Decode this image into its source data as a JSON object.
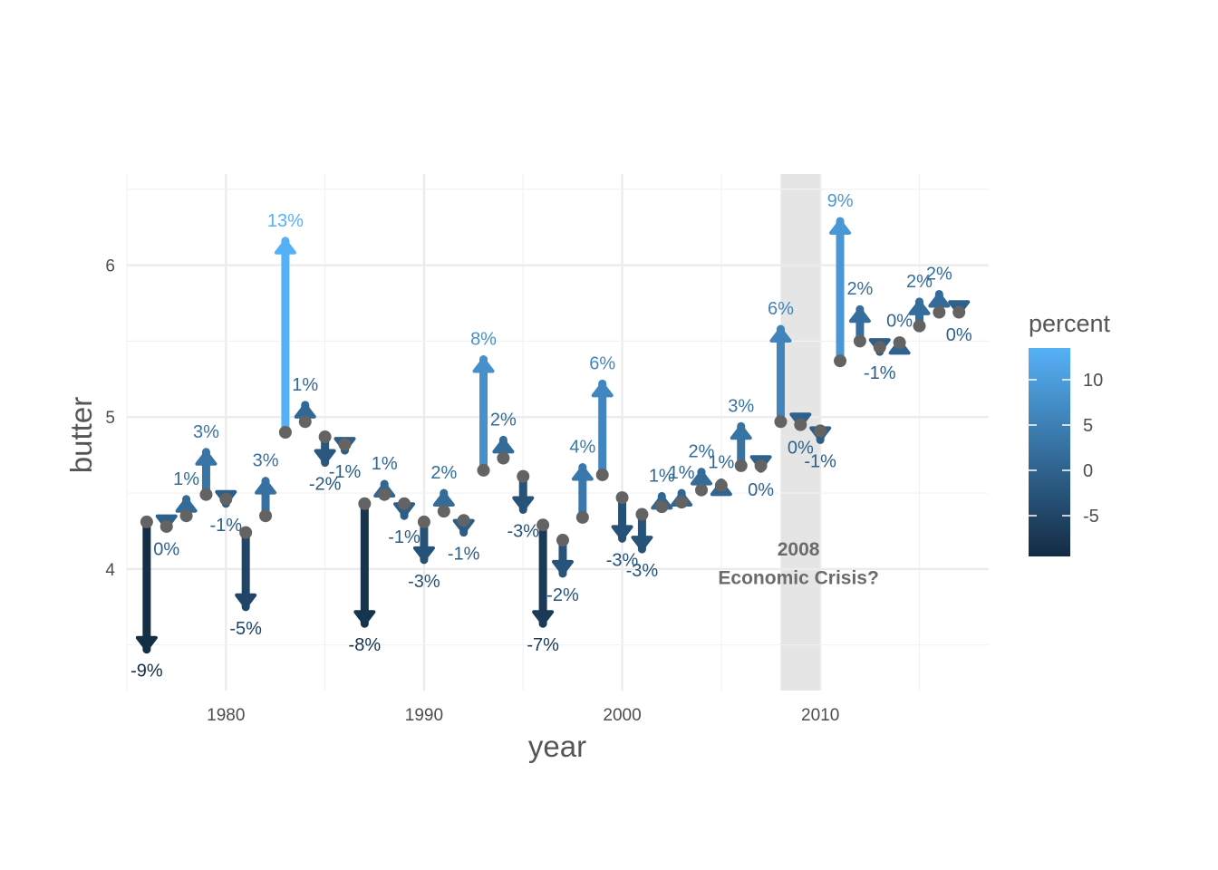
{
  "chart_data": {
    "type": "arrow",
    "xlabel": "year",
    "ylabel": "butter",
    "xlim": [
      1975,
      2018.5
    ],
    "ylim": [
      3.2,
      6.6
    ],
    "x_ticks": [
      1980,
      1990,
      2000,
      2010
    ],
    "x_tick_labels": [
      "1980",
      "1990",
      "2000",
      "2010"
    ],
    "y_ticks": [
      4,
      5,
      6
    ],
    "y_tick_labels": [
      "4",
      "5",
      "6"
    ],
    "grid": true,
    "legend": {
      "title": "percent",
      "position": "right",
      "ticks": [
        10,
        5,
        0,
        -5
      ],
      "tick_labels": [
        "10",
        "5",
        "0",
        "-5"
      ],
      "range": [
        -9.5,
        13.5
      ],
      "colors": [
        "#132B43",
        "#56B1F7"
      ]
    },
    "highlight": {
      "x_from": 2008,
      "x_to": 2010,
      "color": "#e5e5e5",
      "label_lines": [
        "2008",
        "Economic Crisis?"
      ],
      "label_x": 2008.9,
      "label_y": [
        4.09,
        3.9
      ]
    },
    "points": [
      {
        "year": 1976,
        "from": 4.31,
        "to": 3.47,
        "pct": -9.0,
        "label": "-9%"
      },
      {
        "year": 1977,
        "from": 4.28,
        "to": 4.27,
        "pct": -0.2,
        "label": "0%"
      },
      {
        "year": 1978,
        "from": 4.35,
        "to": 4.46,
        "pct": 1.4,
        "label": "1%"
      },
      {
        "year": 1979,
        "from": 4.49,
        "to": 4.77,
        "pct": 3.1,
        "label": "3%"
      },
      {
        "year": 1980,
        "from": 4.46,
        "to": 4.43,
        "pct": -0.8,
        "label": "-1%"
      },
      {
        "year": 1981,
        "from": 4.24,
        "to": 3.75,
        "pct": -5.0,
        "label": "-5%"
      },
      {
        "year": 1982,
        "from": 4.35,
        "to": 4.58,
        "pct": 2.5,
        "label": "3%"
      },
      {
        "year": 1983,
        "from": 4.9,
        "to": 6.16,
        "pct": 13.4,
        "label": "13%"
      },
      {
        "year": 1984,
        "from": 4.97,
        "to": 5.08,
        "pct": 1.0,
        "label": "1%"
      },
      {
        "year": 1985,
        "from": 4.87,
        "to": 4.7,
        "pct": -2.0,
        "label": "-2%"
      },
      {
        "year": 1986,
        "from": 4.82,
        "to": 4.78,
        "pct": -0.7,
        "label": "-1%"
      },
      {
        "year": 1987,
        "from": 4.43,
        "to": 3.64,
        "pct": -8.0,
        "label": "-8%"
      },
      {
        "year": 1988,
        "from": 4.49,
        "to": 4.56,
        "pct": 0.8,
        "label": "1%"
      },
      {
        "year": 1989,
        "from": 4.43,
        "to": 4.35,
        "pct": -1.0,
        "label": "-1%"
      },
      {
        "year": 1990,
        "from": 4.31,
        "to": 4.06,
        "pct": -2.8,
        "label": "-3%"
      },
      {
        "year": 1991,
        "from": 4.38,
        "to": 4.5,
        "pct": 1.5,
        "label": "2%"
      },
      {
        "year": 1992,
        "from": 4.32,
        "to": 4.24,
        "pct": -0.9,
        "label": "-1%"
      },
      {
        "year": 1993,
        "from": 4.65,
        "to": 5.38,
        "pct": 8.0,
        "label": "8%"
      },
      {
        "year": 1994,
        "from": 4.73,
        "to": 4.85,
        "pct": 1.5,
        "label": "2%"
      },
      {
        "year": 1995,
        "from": 4.61,
        "to": 4.39,
        "pct": -2.6,
        "label": "-3%"
      },
      {
        "year": 1996,
        "from": 4.29,
        "to": 3.64,
        "pct": -7.0,
        "label": "-7%"
      },
      {
        "year": 1997,
        "from": 4.19,
        "to": 3.97,
        "pct": -2.4,
        "label": "-2%"
      },
      {
        "year": 1998,
        "from": 4.34,
        "to": 4.67,
        "pct": 3.8,
        "label": "4%"
      },
      {
        "year": 1999,
        "from": 4.62,
        "to": 5.22,
        "pct": 6.2,
        "label": "6%"
      },
      {
        "year": 2000,
        "from": 4.47,
        "to": 4.2,
        "pct": -3.0,
        "label": "-3%"
      },
      {
        "year": 2001,
        "from": 4.36,
        "to": 4.13,
        "pct": -2.6,
        "label": "-3%"
      },
      {
        "year": 2002,
        "from": 4.41,
        "to": 4.48,
        "pct": 0.8,
        "label": "1%"
      },
      {
        "year": 2003,
        "from": 4.44,
        "to": 4.5,
        "pct": 0.7,
        "label": "1%"
      },
      {
        "year": 2004,
        "from": 4.52,
        "to": 4.64,
        "pct": 1.5,
        "label": "2%"
      },
      {
        "year": 2005,
        "from": 4.55,
        "to": 4.57,
        "pct": 0.5,
        "label": "1%"
      },
      {
        "year": 2006,
        "from": 4.68,
        "to": 4.94,
        "pct": 2.8,
        "label": "3%"
      },
      {
        "year": 2007,
        "from": 4.68,
        "to": 4.66,
        "pct": -0.1,
        "label": "0%"
      },
      {
        "year": 2008,
        "from": 4.97,
        "to": 5.58,
        "pct": 5.8,
        "label": "6%"
      },
      {
        "year": 2009,
        "from": 4.95,
        "to": 4.94,
        "pct": -0.2,
        "label": "0%"
      },
      {
        "year": 2010,
        "from": 4.91,
        "to": 4.85,
        "pct": -0.6,
        "label": "-1%"
      },
      {
        "year": 2011,
        "from": 5.37,
        "to": 6.29,
        "pct": 9.1,
        "label": "9%"
      },
      {
        "year": 2012,
        "from": 5.5,
        "to": 5.71,
        "pct": 2.0,
        "label": "2%"
      },
      {
        "year": 2013,
        "from": 5.46,
        "to": 5.43,
        "pct": -0.8,
        "label": "-1%"
      },
      {
        "year": 2014,
        "from": 5.49,
        "to": 5.5,
        "pct": 0.3,
        "label": "0%"
      },
      {
        "year": 2015,
        "from": 5.6,
        "to": 5.76,
        "pct": 1.8,
        "label": "2%"
      },
      {
        "year": 2016,
        "from": 5.69,
        "to": 5.81,
        "pct": 1.6,
        "label": "2%"
      },
      {
        "year": 2017,
        "from": 5.69,
        "to": 5.68,
        "pct": -0.2,
        "label": "0%"
      }
    ]
  }
}
